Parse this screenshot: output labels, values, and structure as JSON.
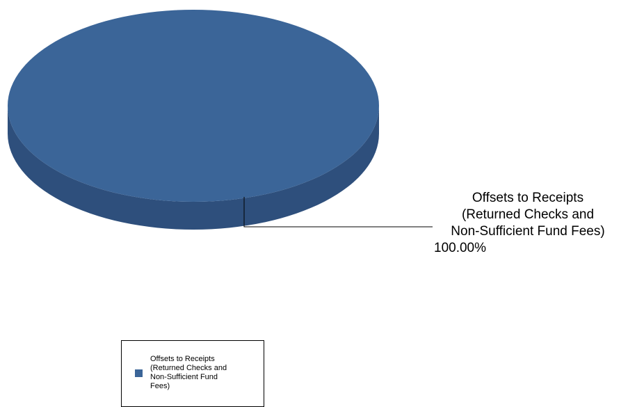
{
  "chart_data": {
    "type": "pie",
    "categories": [
      "Offsets to Receipts (Returned Checks and Non-Sufficient Fund Fees)"
    ],
    "values": [
      100.0
    ],
    "data_labels": [
      {
        "name_lines": [
          "Offsets to Receipts",
          "(Returned Checks and",
          "Non-Sufficient Fund Fees)"
        ],
        "value": "100.00%"
      }
    ],
    "legend": {
      "placement": "bottom",
      "entries": [
        {
          "label_lines": [
            "Offsets to Receipts",
            "(Returned Checks and",
            "Non-Sufficient Fund",
            "Fees)"
          ]
        }
      ]
    },
    "colors": {
      "slice_top": "#3b6598",
      "slice_side": "#2e4f7c",
      "leader_line": "#000000"
    },
    "style": "3d"
  }
}
